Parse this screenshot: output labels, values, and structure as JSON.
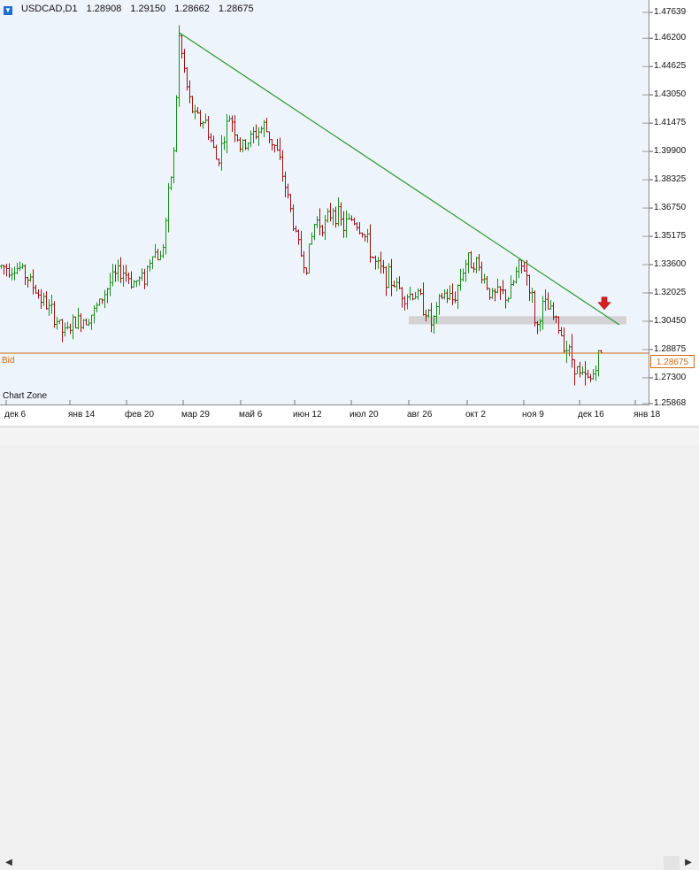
{
  "window": {
    "title": {
      "symbol": "USDCAD,D1",
      "open": "1.28908",
      "high": "1.29150",
      "low": "1.28662",
      "close": "1.28675",
      "icon": "arrow-down-icon"
    },
    "bid_label": "Bid",
    "bid_value": "1.28675",
    "zone_label": "Chart Zone"
  },
  "colors": {
    "up": "#1a8f1a",
    "down": "#a01010",
    "trendline": "#2e9a2e",
    "bid": "#d06a10",
    "zone": "#cfcfcf",
    "arrow": "#d82020"
  },
  "chart_data": {
    "type": "candlestick",
    "symbol": "USDCAD",
    "timeframe": "D1",
    "y_ticks": [
      "1.47639",
      "1.46200",
      "1.44625",
      "1.43050",
      "1.41475",
      "1.39900",
      "1.38325",
      "1.36750",
      "1.35175",
      "1.33600",
      "1.32025",
      "1.30450",
      "1.28875",
      "1.27300",
      "1.25868"
    ],
    "x_ticks": [
      "дек 6",
      "янв 14",
      "фев 20",
      "мар 29",
      "май 6",
      "июн 12",
      "июл 20",
      "авг 26",
      "окт 2",
      "ноя 9",
      "дек 16",
      "янв 18"
    ],
    "ylim": [
      1.25868,
      1.47639
    ],
    "bid": 1.28675,
    "trendline": {
      "start": {
        "date": "мар 20",
        "price": 1.465
      },
      "end": {
        "date": "янв 2",
        "price": 1.3025
      }
    },
    "support_zone": {
      "from": "авг 20",
      "to": "янв 3",
      "low": 1.3028,
      "high": 1.3073
    },
    "signal_arrow": {
      "date": "дек 23",
      "price": 1.314,
      "direction": "down"
    },
    "price_path": [
      [
        0,
        1.335
      ],
      [
        22,
        1.334
      ],
      [
        32,
        1.328
      ],
      [
        45,
        1.318
      ],
      [
        63,
        1.306
      ],
      [
        72,
        1.297
      ],
      [
        82,
        1.303
      ],
      [
        95,
        1.306
      ],
      [
        107,
        1.31
      ],
      [
        125,
        1.327
      ],
      [
        138,
        1.333
      ],
      [
        150,
        1.326
      ],
      [
        163,
        1.329
      ],
      [
        172,
        1.344
      ],
      [
        182,
        1.339
      ],
      [
        188,
        1.365
      ],
      [
        196,
        1.398
      ],
      [
        202,
        1.462
      ],
      [
        207,
        1.447
      ],
      [
        213,
        1.428
      ],
      [
        220,
        1.418
      ],
      [
        232,
        1.415
      ],
      [
        245,
        1.393
      ],
      [
        260,
        1.42
      ],
      [
        272,
        1.4
      ],
      [
        286,
        1.408
      ],
      [
        298,
        1.413
      ],
      [
        312,
        1.4
      ],
      [
        322,
        1.38
      ],
      [
        335,
        1.35
      ],
      [
        345,
        1.334
      ],
      [
        356,
        1.361
      ],
      [
        368,
        1.358
      ],
      [
        376,
        1.368
      ],
      [
        388,
        1.357
      ],
      [
        398,
        1.362
      ],
      [
        410,
        1.354
      ],
      [
        425,
        1.335
      ],
      [
        440,
        1.328
      ],
      [
        458,
        1.319
      ],
      [
        470,
        1.32
      ],
      [
        480,
        1.312
      ],
      [
        488,
        1.302
      ],
      [
        500,
        1.32
      ],
      [
        512,
        1.316
      ],
      [
        525,
        1.337
      ],
      [
        535,
        1.339
      ],
      [
        545,
        1.33
      ],
      [
        556,
        1.318
      ],
      [
        565,
        1.32
      ],
      [
        575,
        1.318
      ],
      [
        585,
        1.334
      ],
      [
        593,
        1.334
      ],
      [
        600,
        1.32
      ],
      [
        606,
        1.299
      ],
      [
        612,
        1.313
      ],
      [
        620,
        1.311
      ],
      [
        630,
        1.302
      ],
      [
        640,
        1.29
      ],
      [
        648,
        1.282
      ],
      [
        655,
        1.274
      ],
      [
        662,
        1.272
      ],
      [
        668,
        1.272
      ],
      [
        674,
        1.283
      ],
      [
        680,
        1.287
      ]
    ]
  }
}
